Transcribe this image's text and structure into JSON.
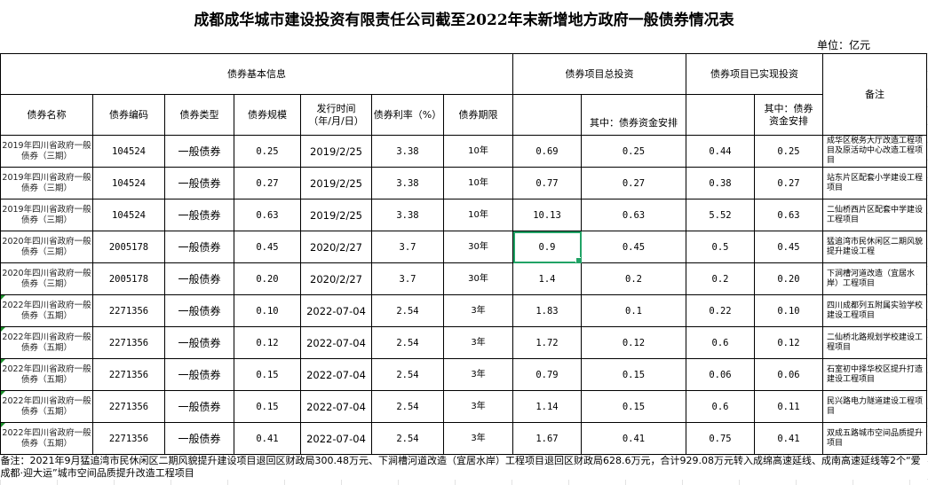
{
  "title": "成都成华城市建设投资有限责任公司截至2022年末新增地方政府一般债券情况表",
  "unit": "单位：亿元",
  "headers": {
    "basic_info": "债券基本信息",
    "total_investment": "债券项目总投资",
    "realized_investment": "债券项目已实现投资",
    "remark": "备注",
    "bond_name": "债券名称",
    "bond_code": "债券编码",
    "bond_type": "债券类型",
    "bond_scale": "债券规模",
    "issue_date": "发行时间（年/月/日）",
    "interest_rate": "债券利率（%）",
    "term": "债券期限",
    "total_of_which": "其中：债券资金安排",
    "realized_of_which": "其中：债券资金安排"
  },
  "rows": [
    {
      "name": "2019年四川省政府一般债券（三期）",
      "code": "104524",
      "type": "一般债券",
      "scale": "0.25",
      "date": "2019/2/25",
      "rate": "3.38",
      "term": "10年",
      "total": "0.69",
      "total_bond": "0.25",
      "realized": "0.44",
      "realized_bond": "0.25",
      "note": "成华区税务大厅改造工程项目及原活动中心改造工程项目"
    },
    {
      "name": "2019年四川省政府一般债券（三期）",
      "code": "104524",
      "type": "一般债券",
      "scale": "0.27",
      "date": "2019/2/25",
      "rate": "3.38",
      "term": "10年",
      "total": "0.77",
      "total_bond": "0.27",
      "realized": "0.38",
      "realized_bond": "0.27",
      "note": "站东片区配套小学建设工程项目"
    },
    {
      "name": "2019年四川省政府一般债券（三期）",
      "code": "104524",
      "type": "一般债券",
      "scale": "0.63",
      "date": "2019/2/25",
      "rate": "3.38",
      "term": "10年",
      "total": "10.13",
      "total_bond": "0.63",
      "realized": "5.52",
      "realized_bond": "0.63",
      "note": "二仙桥西片区配套中学建设工程项目"
    },
    {
      "name": "2020年四川省政府一般债券（三期）",
      "code": "2005178",
      "type": "一般债券",
      "scale": "0.45",
      "date": "2020/2/27",
      "rate": "3.7",
      "term": "30年",
      "total": "0.9",
      "total_bond": "0.45",
      "realized": "0.5",
      "realized_bond": "0.45",
      "note": "猛追湾市民休闲区二期风貌提升建设工程"
    },
    {
      "name": "2020年四川省政府一般债券（三期）",
      "code": "2005178",
      "type": "一般债券",
      "scale": "0.20",
      "date": "2020/2/27",
      "rate": "3.7",
      "term": "30年",
      "total": "1.4",
      "total_bond": "0.2",
      "realized": "0.2",
      "realized_bond": "0.20",
      "note": "下涧槽河道改造（宜居水岸）工程项目"
    },
    {
      "name": "2022年四川省政府一般债券（五期）",
      "code": "2271356",
      "type": "一般债券",
      "scale": "0.10",
      "date": "2022-07-04",
      "rate": "2.54",
      "term": "3年",
      "total": "1.83",
      "total_bond": "0.1",
      "realized": "0.22",
      "realized_bond": "0.10",
      "note": "四川成都列五附属实验学校建设工程项目"
    },
    {
      "name": "2022年四川省政府一般债券（五期）",
      "code": "2271356",
      "type": "一般债券",
      "scale": "0.12",
      "date": "2022-07-04",
      "rate": "2.54",
      "term": "3年",
      "total": "1.72",
      "total_bond": "0.12",
      "realized": "0.6",
      "realized_bond": "0.12",
      "note": "二仙桥北路规划学校建设工程项目"
    },
    {
      "name": "2022年四川省政府一般债券（五期）",
      "code": "2271356",
      "type": "一般债券",
      "scale": "0.15",
      "date": "2022-07-04",
      "rate": "2.54",
      "term": "3年",
      "total": "0.79",
      "total_bond": "0.15",
      "realized": "0.06",
      "realized_bond": "0.06",
      "note": "石室初中择华校区提升打造建设工程项目"
    },
    {
      "name": "2022年四川省政府一般债券（五期）",
      "code": "2271356",
      "type": "一般债券",
      "scale": "0.15",
      "date": "2022-07-04",
      "rate": "2.54",
      "term": "3年",
      "total": "1.14",
      "total_bond": "0.15",
      "realized": "0.6",
      "realized_bond": "0.11",
      "note": "民兴路电力隧道建设工程项目"
    },
    {
      "name": "2022年四川省政府一般债券（五期）",
      "code": "2271356",
      "type": "一般债券",
      "scale": "0.41",
      "date": "2022-07-04",
      "rate": "2.54",
      "term": "3年",
      "total": "1.67",
      "total_bond": "0.41",
      "realized": "0.75",
      "realized_bond": "0.41",
      "note": "双成五路城市空间品质提升项目"
    }
  ],
  "footnote": "备注：2021年9月猛追湾市民休闲区二期风貌提升建设项目退回区财政局300.48万元、下涧槽河道改造（宜居水岸）工程项目退回区财政局628.6万元，合计929.08万元转入成绵高速延线、成南高速延线等2个“爱成都·迎大运”城市空间品质提升改造工程项目"
}
